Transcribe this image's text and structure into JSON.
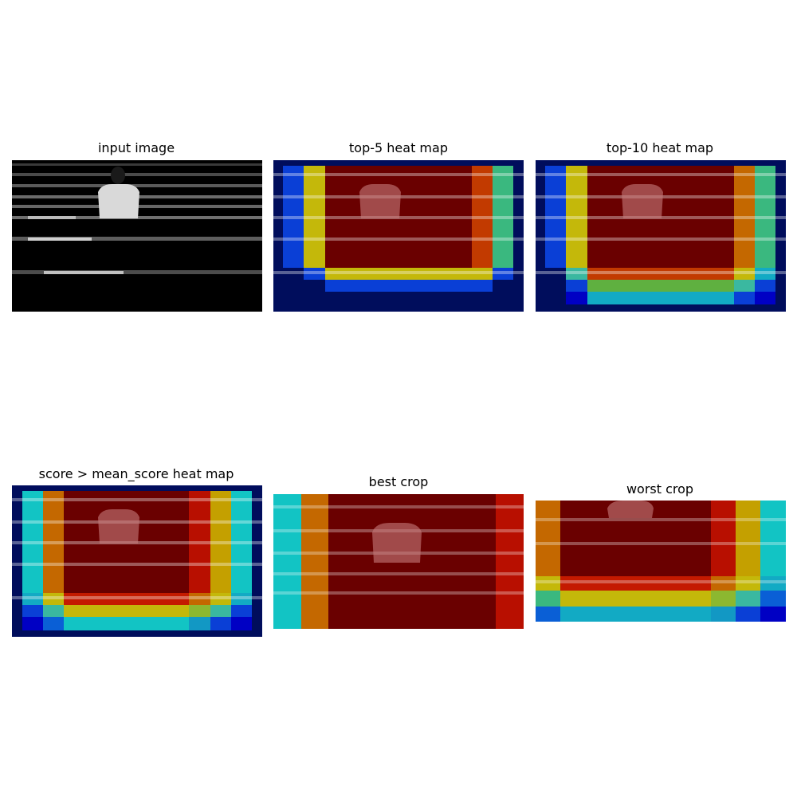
{
  "panels": [
    {
      "title": "input image"
    },
    {
      "title": "top-5 heat map"
    },
    {
      "title": "top-10 heat map"
    },
    {
      "title": "score > mean_score heat map"
    },
    {
      "title": "best crop"
    },
    {
      "title": "worst crop"
    }
  ],
  "colors": {
    "dark_navy": "#000d5c",
    "blue": "#0a3fd6",
    "cyan": "#12c4c4",
    "teal_green": "#3ab87f",
    "yellow": "#c4b80a",
    "orange": "#c46800",
    "red": "#b80f00",
    "dark_red": "#6a0000"
  }
}
